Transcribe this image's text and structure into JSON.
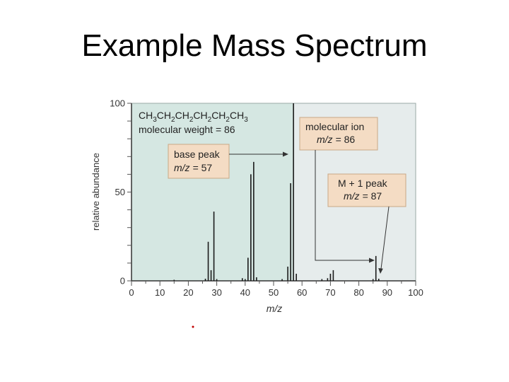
{
  "slide": {
    "title": "Example Mass Spectrum"
  },
  "chart_data": {
    "type": "bar",
    "xlabel": "m/z",
    "ylabel": "relative abundance",
    "xlim": [
      0,
      100
    ],
    "ylim": [
      0,
      100
    ],
    "x_ticks": [
      0,
      10,
      20,
      30,
      40,
      50,
      60,
      70,
      80,
      90,
      100
    ],
    "y_ticks": [
      0,
      50,
      100
    ],
    "peaks": [
      {
        "x": 15,
        "y": 0.6
      },
      {
        "x": 26,
        "y": 1.2
      },
      {
        "x": 27,
        "y": 22
      },
      {
        "x": 28,
        "y": 6
      },
      {
        "x": 29,
        "y": 39
      },
      {
        "x": 30,
        "y": 1
      },
      {
        "x": 39,
        "y": 1.5
      },
      {
        "x": 40,
        "y": 1
      },
      {
        "x": 41,
        "y": 13
      },
      {
        "x": 42,
        "y": 60
      },
      {
        "x": 43,
        "y": 67
      },
      {
        "x": 44,
        "y": 2
      },
      {
        "x": 53,
        "y": 1
      },
      {
        "x": 55,
        "y": 8
      },
      {
        "x": 56,
        "y": 55
      },
      {
        "x": 57,
        "y": 100
      },
      {
        "x": 58,
        "y": 4
      },
      {
        "x": 67,
        "y": 1
      },
      {
        "x": 69,
        "y": 1.5
      },
      {
        "x": 70,
        "y": 4
      },
      {
        "x": 71,
        "y": 6
      },
      {
        "x": 85,
        "y": 1
      },
      {
        "x": 86,
        "y": 14
      },
      {
        "x": 87,
        "y": 1.2
      }
    ],
    "annotations": {
      "formula": "CH3CH2CH2CH2CH2CH3",
      "molecular_weight": "molecular weight = 86",
      "base_peak": {
        "title": "base peak",
        "mz_label": "m/z",
        "mz_value": "= 57",
        "x": 57
      },
      "molecular_ion": {
        "title": "molecular ion",
        "mz_label": "m/z",
        "mz_value": "= 86",
        "x": 86
      },
      "m_plus_1": {
        "title": "M + 1 peak",
        "mz_label": "m/z",
        "mz_value": "= 87",
        "x": 87
      }
    }
  }
}
